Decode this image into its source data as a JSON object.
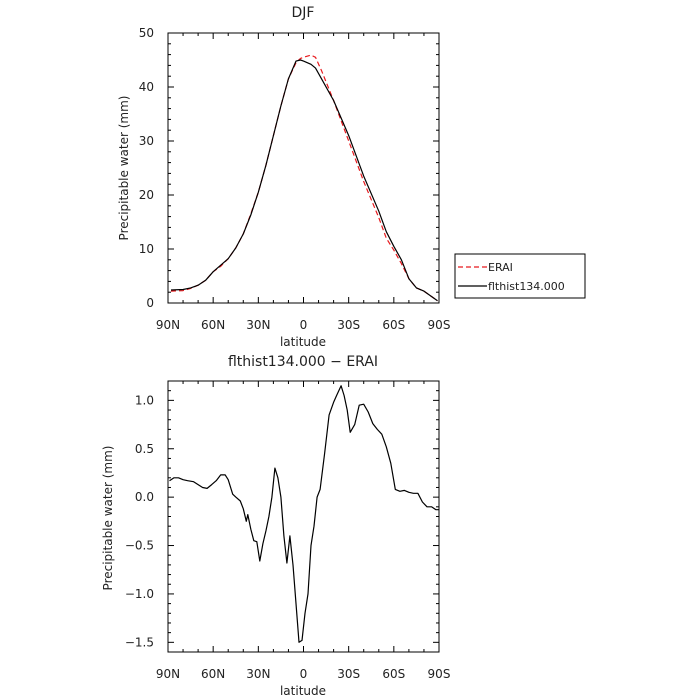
{
  "chart_data": [
    {
      "type": "line",
      "title": "DJF",
      "xlabel": "latitude",
      "ylabel": "Precipitable water (mm)",
      "xlim": [
        90,
        -90
      ],
      "ylim": [
        0,
        50
      ],
      "xticks": [
        90,
        60,
        30,
        0,
        -30,
        -60,
        -90
      ],
      "xtick_labels": [
        "90N",
        "60N",
        "30N",
        "0",
        "30S",
        "60S",
        "90S"
      ],
      "yticks": [
        0,
        10,
        20,
        30,
        40,
        50
      ],
      "ytick_labels": [
        "0",
        "10",
        "20",
        "30",
        "40",
        "50"
      ],
      "legend_position": "right",
      "series": [
        {
          "name": "ERAI",
          "color": "#e8191d",
          "style": "dashed",
          "x": [
            88,
            80,
            75,
            70,
            65,
            60,
            55,
            50,
            45,
            40,
            35,
            30,
            25,
            20,
            15,
            10,
            5,
            2,
            0,
            -5,
            -8,
            -12,
            -20,
            -30,
            -40,
            -50,
            -55,
            -60,
            -65,
            -70,
            -75,
            -80,
            -85,
            -89
          ],
          "y": [
            2.2,
            2.3,
            2.7,
            3.3,
            4.2,
            5.8,
            6.8,
            8.2,
            10.2,
            12.8,
            16.5,
            20.5,
            25.5,
            31,
            36.5,
            41.5,
            44.5,
            45.3,
            45.5,
            45.9,
            45.5,
            43,
            37.5,
            30,
            22.5,
            15.8,
            12,
            9.8,
            7.3,
            4.5,
            2.8,
            2.2,
            1.2,
            0.4
          ]
        },
        {
          "name": "flthist134.000",
          "color": "#000000",
          "style": "solid",
          "x": [
            88,
            80,
            75,
            70,
            65,
            60,
            55,
            50,
            45,
            40,
            35,
            30,
            25,
            20,
            15,
            10,
            5,
            2,
            0,
            -5,
            -8,
            -12,
            -20,
            -30,
            -40,
            -50,
            -55,
            -60,
            -65,
            -70,
            -75,
            -80,
            -85,
            -89
          ],
          "y": [
            2.4,
            2.5,
            2.8,
            3.3,
            4.2,
            5.8,
            7.0,
            8.2,
            10.2,
            12.8,
            16.3,
            20.5,
            25.5,
            31,
            36.5,
            41.5,
            44.8,
            45,
            44.8,
            44.2,
            43.5,
            41.5,
            37.5,
            31,
            23.5,
            17,
            13.2,
            10.5,
            8.0,
            4.5,
            2.8,
            2.2,
            1.2,
            0.4
          ]
        }
      ]
    },
    {
      "type": "line",
      "title": "flthist134.000 − ERAI",
      "xlabel": "latitude",
      "ylabel": "Precipitable water (mm)",
      "xlim": [
        90,
        -90
      ],
      "ylim": [
        -1.6,
        1.2
      ],
      "xticks": [
        90,
        60,
        30,
        0,
        -30,
        -60,
        -90
      ],
      "xtick_labels": [
        "90N",
        "60N",
        "30N",
        "0",
        "30S",
        "60S",
        "90S"
      ],
      "yticks": [
        1.0,
        0.5,
        0.0,
        -0.5,
        -1.0,
        -1.5
      ],
      "ytick_labels": [
        "1.0",
        "0.5",
        "0.0",
        "−0.5",
        "−1.0",
        "−1.5"
      ],
      "series": [
        {
          "color": "#000000",
          "style": "solid",
          "x": [
            89,
            86,
            83,
            80,
            77,
            73,
            70,
            67,
            64,
            61,
            58,
            55,
            52,
            50,
            47,
            45,
            42,
            40,
            38,
            37,
            35,
            33,
            31,
            29,
            27,
            25,
            23,
            21,
            19,
            17,
            15,
            13,
            11,
            9,
            7,
            5,
            3,
            1,
            -1,
            -3,
            -5,
            -7,
            -9,
            -11,
            -14,
            -17,
            -20,
            -22,
            -25,
            -27,
            -29,
            -31,
            -34,
            -37,
            -40,
            -43,
            -46,
            -49,
            -52,
            -55,
            -58,
            -61,
            -64,
            -67,
            -70,
            -73,
            -76,
            -79,
            -82,
            -85,
            -88,
            -90
          ],
          "y": [
            0.17,
            0.2,
            0.2,
            0.18,
            0.17,
            0.16,
            0.13,
            0.1,
            0.09,
            0.13,
            0.17,
            0.23,
            0.23,
            0.18,
            0.03,
            0.0,
            -0.04,
            -0.12,
            -0.25,
            -0.18,
            -0.33,
            -0.45,
            -0.46,
            -0.66,
            -0.48,
            -0.35,
            -0.2,
            0.0,
            0.3,
            0.2,
            0.0,
            -0.4,
            -0.68,
            -0.4,
            -0.7,
            -1.1,
            -1.5,
            -1.48,
            -1.2,
            -1.0,
            -0.5,
            -0.3,
            0.0,
            0.08,
            0.45,
            0.85,
            0.98,
            1.05,
            1.15,
            1.05,
            0.9,
            0.67,
            0.75,
            0.95,
            0.96,
            0.88,
            0.76,
            0.7,
            0.65,
            0.52,
            0.35,
            0.08,
            0.06,
            0.07,
            0.05,
            0.04,
            0.04,
            -0.05,
            -0.1,
            -0.1,
            -0.13,
            -0.13
          ]
        }
      ]
    }
  ]
}
